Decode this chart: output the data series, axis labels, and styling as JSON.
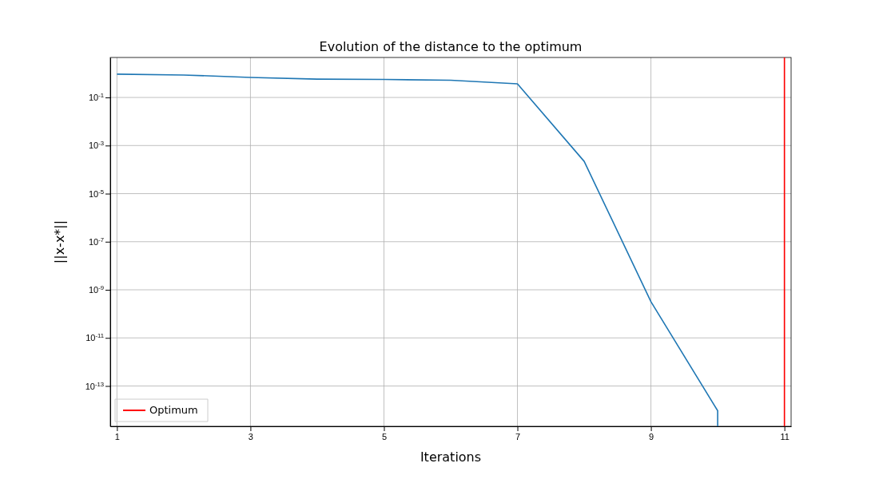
{
  "chart_data": {
    "type": "line",
    "title": "Evolution of the distance to the optimum",
    "xlabel": "Iterations",
    "ylabel": "||x-x*||",
    "series": [
      {
        "color": "#1f77b4",
        "x": [
          1,
          2,
          3,
          4,
          5,
          6,
          7,
          8,
          9,
          10,
          10
        ],
        "values": [
          0.93,
          0.86,
          0.68,
          0.58,
          0.56,
          0.52,
          0.37,
          0.00022,
          3.2e-10,
          9.3e-15,
          2.1e-15
        ]
      },
      {
        "name": "Optimum",
        "color": "#ff0000",
        "x": [
          11,
          11
        ],
        "values": [
          2.1e-15,
          4.6
        ]
      }
    ],
    "xlim": [
      0.9,
      11.1
    ],
    "xticks": [
      1,
      3,
      5,
      7,
      9,
      11
    ],
    "ylim": [
      2.1e-15,
      4.6
    ],
    "log": "y",
    "yticks": [
      {
        "value": 1e-13,
        "label": "10$^{-13}$"
      },
      {
        "value": 1e-11,
        "label": "10$^{-11}$"
      },
      {
        "value": 1e-09,
        "label": "10$^{-9}$"
      },
      {
        "value": 1e-07,
        "label": "10$^{-7}$"
      },
      {
        "value": 1e-05,
        "label": "10$^{-5}$"
      },
      {
        "value": 0.001,
        "label": "10$^{-3}$"
      },
      {
        "value": 0.1,
        "label": "10$^{-1}$"
      }
    ],
    "grid": true,
    "legend": "bottom left"
  }
}
